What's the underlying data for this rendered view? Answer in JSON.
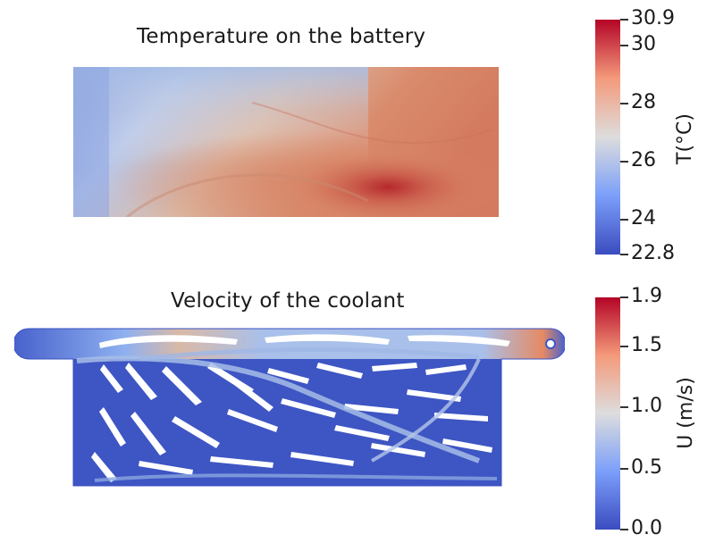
{
  "panels": [
    {
      "title": "Temperature on the battery",
      "colorbar": {
        "label": "T(°C)",
        "min": 22.8,
        "max": 30.9,
        "ticks": [
          "30.9",
          "30",
          "28",
          "26",
          "24",
          "22.8"
        ]
      }
    },
    {
      "title": "Velocity of the coolant",
      "colorbar": {
        "label": "U (m/s)",
        "min": 0.0,
        "max": 1.9,
        "ticks": [
          "1.9",
          "1.5",
          "1.0",
          "0.5",
          "0.0"
        ]
      }
    }
  ],
  "colormap": {
    "low": "#3b4cc0",
    "mid": "#dddddd",
    "high": "#b40426"
  }
}
